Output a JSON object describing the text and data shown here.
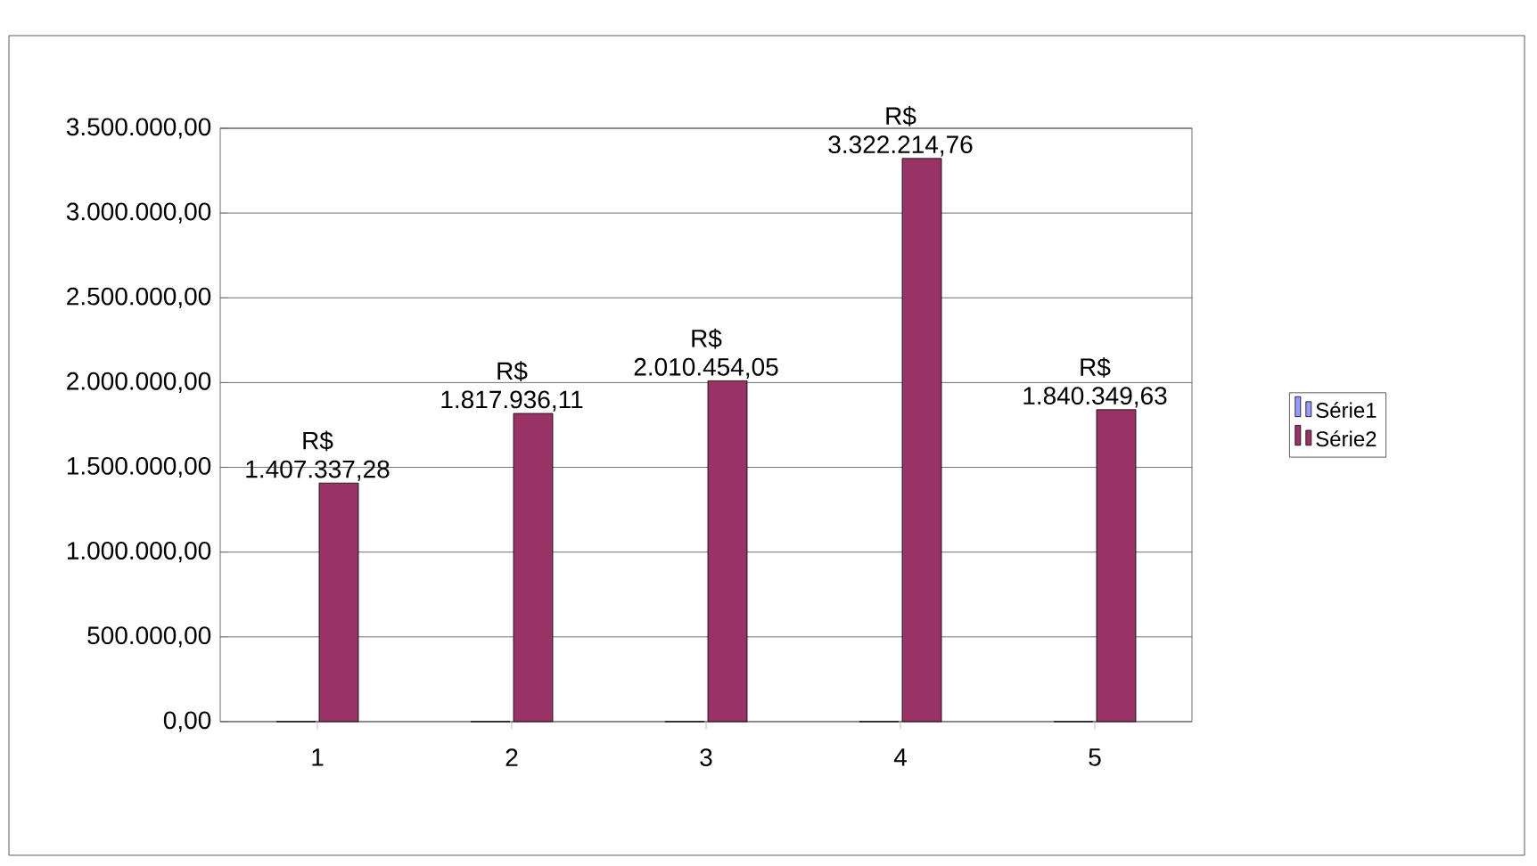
{
  "chart_data": {
    "type": "bar",
    "categories": [
      "1",
      "2",
      "3",
      "4",
      "5"
    ],
    "series": [
      {
        "name": "Série1",
        "color": "#9999ff",
        "values": [
          0,
          0,
          0,
          0,
          0
        ]
      },
      {
        "name": "Série2",
        "color": "#993366",
        "values": [
          1407337.28,
          1817936.11,
          2010454.05,
          3322214.76,
          1840349.63
        ],
        "value_labels": [
          "R$ 1.407.337,28",
          "R$ 1.817.936,11",
          "R$ 2.010.454,05",
          "R$ 3.322.214,76",
          "R$ 1.840.349,63"
        ]
      }
    ],
    "ylim": [
      0,
      3500000
    ],
    "yticks": [
      {
        "value": 0,
        "label": "0,00"
      },
      {
        "value": 500000,
        "label": "500.000,00"
      },
      {
        "value": 1000000,
        "label": "1.000.000,00"
      },
      {
        "value": 1500000,
        "label": "1.500.000,00"
      },
      {
        "value": 2000000,
        "label": "2.000.000,00"
      },
      {
        "value": 2500000,
        "label": "2.500.000,00"
      },
      {
        "value": 3000000,
        "label": "3.000.000,00"
      },
      {
        "value": 3500000,
        "label": "3.500.000,00"
      }
    ],
    "grid": "y",
    "legend": "right"
  }
}
